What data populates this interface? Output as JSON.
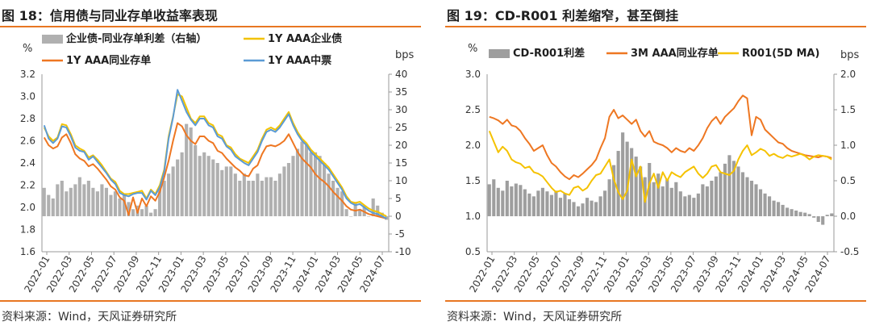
{
  "panels": [
    {
      "title": "图 18：信用债与同业存单收益率表现",
      "source": "资料来源：Wind，天风证券研究所",
      "left_unit": "%",
      "right_unit": "bps"
    },
    {
      "title": "图 19：CD-R001 利差缩窄，甚至倒挂",
      "source": "资料来源：Wind，天风证券研究所",
      "left_unit": "%",
      "right_unit": "bps"
    }
  ],
  "chart_data": [
    {
      "type": "line",
      "title": "",
      "x_ticks": [
        "2022-01",
        "2022-03",
        "2022-05",
        "2022-07",
        "2022-09",
        "2022-11",
        "2023-01",
        "2023-03",
        "2023-05",
        "2023-07",
        "2023-09",
        "2023-11",
        "2024-01",
        "2024-03",
        "2024-05",
        "2024-07"
      ],
      "ylim_left": [
        1.6,
        3.2
      ],
      "yticks_left": [
        "1.6",
        "1.8",
        "2.0",
        "2.2",
        "2.4",
        "2.6",
        "2.8",
        "3.0",
        "3.2"
      ],
      "ylim_right": [
        -10,
        40
      ],
      "yticks_right": [
        "-10",
        "-5",
        "0",
        "5",
        "10",
        "15",
        "20",
        "25",
        "30",
        "35",
        "40"
      ],
      "grid": false,
      "legend_position": "top",
      "series": [
        {
          "name": "企业债-同业存单利差（右轴）",
          "type": "bar",
          "axis": "right",
          "color": "#b0b0b0",
          "values": [
            8,
            6,
            5,
            9,
            10,
            7,
            8,
            9,
            11,
            9,
            10,
            8,
            7,
            9,
            8,
            6,
            7,
            5,
            6,
            4,
            2,
            3,
            2,
            3,
            1,
            2,
            8,
            10,
            12,
            14,
            16,
            18,
            26,
            25,
            20,
            17,
            18,
            17,
            16,
            15,
            13,
            14,
            14,
            12,
            10,
            12,
            10,
            10,
            12,
            10,
            11,
            11,
            10,
            12,
            14,
            15,
            17,
            19,
            21,
            20,
            18,
            18,
            17,
            15,
            12,
            10,
            8,
            7,
            2,
            0,
            4,
            2,
            3,
            0,
            5,
            3,
            1,
            -1
          ]
        },
        {
          "name": "1Y AAA企业债",
          "type": "line",
          "axis": "left",
          "color": "#f2c200",
          "values": [
            2.72,
            2.64,
            2.6,
            2.63,
            2.75,
            2.74,
            2.66,
            2.56,
            2.53,
            2.51,
            2.45,
            2.47,
            2.43,
            2.38,
            2.32,
            2.26,
            2.23,
            2.15,
            2.12,
            2.12,
            2.13,
            2.14,
            2.15,
            2.08,
            2.16,
            2.12,
            2.2,
            2.34,
            2.64,
            2.82,
            3.02,
            3.0,
            2.9,
            2.8,
            2.76,
            2.82,
            2.82,
            2.76,
            2.74,
            2.66,
            2.64,
            2.56,
            2.54,
            2.48,
            2.44,
            2.42,
            2.4,
            2.46,
            2.52,
            2.62,
            2.7,
            2.72,
            2.7,
            2.74,
            2.8,
            2.86,
            2.76,
            2.68,
            2.62,
            2.58,
            2.52,
            2.48,
            2.44,
            2.4,
            2.36,
            2.3,
            2.24,
            2.18,
            2.1,
            2.05,
            2.04,
            2.05,
            2.02,
            1.99,
            1.97,
            1.96,
            1.94,
            1.92
          ]
        },
        {
          "name": "1Y AAA同业存单",
          "type": "line",
          "axis": "left",
          "color": "#ee7722",
          "values": [
            2.63,
            2.56,
            2.53,
            2.55,
            2.63,
            2.66,
            2.58,
            2.48,
            2.44,
            2.42,
            2.37,
            2.39,
            2.35,
            2.3,
            2.25,
            2.19,
            2.16,
            2.09,
            2.06,
            1.93,
            2.09,
            1.95,
            2.08,
            2.01,
            2.1,
            2.06,
            2.14,
            2.27,
            2.42,
            2.6,
            2.76,
            2.73,
            2.65,
            2.6,
            2.57,
            2.64,
            2.64,
            2.6,
            2.58,
            2.51,
            2.49,
            2.44,
            2.4,
            2.36,
            2.33,
            2.29,
            2.28,
            2.35,
            2.38,
            2.48,
            2.55,
            2.56,
            2.55,
            2.57,
            2.6,
            2.66,
            2.58,
            2.5,
            2.44,
            2.4,
            2.36,
            2.3,
            2.26,
            2.23,
            2.19,
            2.14,
            2.1,
            2.06,
            2.01,
            1.98,
            1.97,
            1.98,
            1.96,
            1.94,
            1.93,
            1.92,
            1.91,
            1.9
          ]
        },
        {
          "name": "1Y AAA中票",
          "type": "line",
          "axis": "left",
          "color": "#5b9bd5",
          "values": [
            2.74,
            2.62,
            2.58,
            2.62,
            2.73,
            2.72,
            2.64,
            2.54,
            2.51,
            2.5,
            2.43,
            2.46,
            2.41,
            2.36,
            2.31,
            2.25,
            2.21,
            2.13,
            2.11,
            2.1,
            2.12,
            2.13,
            2.13,
            2.07,
            2.15,
            2.11,
            2.18,
            2.32,
            2.62,
            2.81,
            3.06,
            2.96,
            2.86,
            2.79,
            2.74,
            2.8,
            2.8,
            2.74,
            2.72,
            2.64,
            2.62,
            2.55,
            2.52,
            2.46,
            2.43,
            2.4,
            2.38,
            2.44,
            2.5,
            2.6,
            2.68,
            2.7,
            2.68,
            2.72,
            2.78,
            2.84,
            2.74,
            2.66,
            2.6,
            2.56,
            2.5,
            2.46,
            2.42,
            2.38,
            2.34,
            2.28,
            2.22,
            2.16,
            2.08,
            2.04,
            2.02,
            2.03,
            2.0,
            1.97,
            1.95,
            1.94,
            1.92,
            1.9
          ]
        }
      ]
    },
    {
      "type": "line",
      "title": "",
      "x_ticks": [
        "2022-01",
        "2022-03",
        "2022-05",
        "2022-07",
        "2022-09",
        "2022-11",
        "2023-01",
        "2023-03",
        "2023-05",
        "2023-07",
        "2023-09",
        "2023-11",
        "2024-01",
        "2024-03",
        "2024-05",
        "2024-07"
      ],
      "ylim_left": [
        0.5,
        3.0
      ],
      "yticks_left": [
        "0.5",
        "1.0",
        "1.5",
        "2.0",
        "2.5",
        "3.0"
      ],
      "ylim_right": [
        -0.5,
        2.0
      ],
      "yticks_right": [
        "-0.5",
        "0.0",
        "0.5",
        "1.0",
        "1.5",
        "2.0"
      ],
      "grid": false,
      "legend_position": "top",
      "series": [
        {
          "name": "CD-R001利差",
          "type": "bar",
          "axis": "right",
          "color": "#9e9e9e",
          "values": [
            0.45,
            0.52,
            0.4,
            0.36,
            0.5,
            0.42,
            0.46,
            0.44,
            0.38,
            0.32,
            0.28,
            0.36,
            0.4,
            0.35,
            0.3,
            0.36,
            0.26,
            0.32,
            0.24,
            0.2,
            0.14,
            0.18,
            0.26,
            0.22,
            0.2,
            0.28,
            0.36,
            0.52,
            0.72,
            0.92,
            1.18,
            1.05,
            0.96,
            0.84,
            0.7,
            0.55,
            0.75,
            0.48,
            0.6,
            0.42,
            0.52,
            0.4,
            0.48,
            0.35,
            0.28,
            0.3,
            0.26,
            0.32,
            0.45,
            0.42,
            0.5,
            0.56,
            0.62,
            0.74,
            0.86,
            0.78,
            0.7,
            0.62,
            0.55,
            0.5,
            0.45,
            0.38,
            0.32,
            0.28,
            0.22,
            0.2,
            0.16,
            0.12,
            0.1,
            0.08,
            0.06,
            0.05,
            0.03,
            -0.02,
            -0.08,
            -0.12,
            0.02,
            0.04
          ]
        },
        {
          "name": "3M AAA同业存单",
          "type": "line",
          "axis": "left",
          "color": "#ee7722",
          "values": [
            2.4,
            2.38,
            2.35,
            2.3,
            2.36,
            2.28,
            2.26,
            2.2,
            2.1,
            2.02,
            1.92,
            1.96,
            2.0,
            1.86,
            1.75,
            1.7,
            1.62,
            1.56,
            1.52,
            1.58,
            1.55,
            1.6,
            1.66,
            1.72,
            1.8,
            1.96,
            2.1,
            2.4,
            2.5,
            2.38,
            2.42,
            2.36,
            2.3,
            2.36,
            2.2,
            2.12,
            2.2,
            2.05,
            2.02,
            2.0,
            1.96,
            1.9,
            1.96,
            1.92,
            1.9,
            1.96,
            1.92,
            2.0,
            2.1,
            2.24,
            2.34,
            2.4,
            2.3,
            2.4,
            2.46,
            2.52,
            2.62,
            2.7,
            2.66,
            2.14,
            2.4,
            2.36,
            2.22,
            2.16,
            2.1,
            2.04,
            2.02,
            1.96,
            1.92,
            1.9,
            1.88,
            1.86,
            1.85,
            1.84,
            1.83,
            1.85,
            1.84,
            1.82
          ]
        },
        {
          "name": "R001(5D MA)",
          "type": "line",
          "axis": "left",
          "color": "#f5c200",
          "values": [
            2.2,
            2.05,
            1.9,
            1.98,
            1.92,
            1.8,
            1.76,
            1.74,
            1.68,
            1.7,
            1.62,
            1.6,
            1.56,
            1.48,
            1.4,
            1.34,
            1.36,
            1.32,
            1.3,
            1.4,
            1.42,
            1.36,
            1.4,
            1.5,
            1.58,
            1.6,
            1.7,
            1.8,
            1.52,
            1.34,
            1.24,
            1.36,
            1.8,
            1.56,
            1.7,
            1.2,
            1.46,
            1.6,
            1.4,
            1.62,
            1.5,
            1.62,
            1.58,
            1.55,
            1.62,
            1.66,
            1.7,
            1.6,
            1.54,
            1.6,
            1.7,
            1.72,
            1.62,
            1.6,
            1.58,
            1.64,
            1.8,
            1.92,
            2.0,
            1.86,
            1.9,
            1.95,
            1.92,
            1.85,
            1.88,
            1.84,
            1.82,
            1.86,
            1.84,
            1.86,
            1.88,
            1.85,
            1.8,
            1.84,
            1.86,
            1.85,
            1.84,
            1.8
          ]
        }
      ]
    }
  ]
}
